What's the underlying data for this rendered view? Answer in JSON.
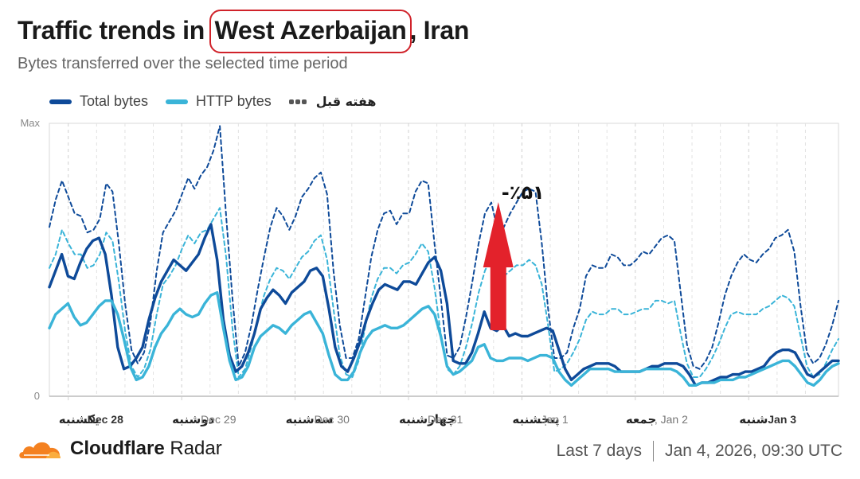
{
  "header": {
    "title_prefix": "Traffic trends in ",
    "title_region": "West Azerbaijan",
    "title_suffix": ", Iran",
    "subtitle": "Bytes transferred over the selected time period"
  },
  "legend": {
    "total": "Total bytes",
    "http": "HTTP bytes",
    "previous": "هفته قبل"
  },
  "footer": {
    "brand": "Cloudflare",
    "product": "Radar",
    "range": "Last 7 days",
    "timestamp": "Jan 4, 2026, 09:30 UTC"
  },
  "colors": {
    "total": "#0e4a99",
    "http": "#3ab4d8",
    "annotation": "#e3222b",
    "brand_orange": "#f48120"
  },
  "chart_data": {
    "type": "line",
    "y_axis": {
      "max_label": "Max",
      "min_label": "0",
      "range": [
        0,
        100
      ]
    },
    "x_ticks": [
      {
        "day": "یکشنبه",
        "date": "Dec 28"
      },
      {
        "day": "دوشنبه",
        "date": "Dec 29"
      },
      {
        "day": "سه‌شنبه",
        "date": "Dec 30"
      },
      {
        "day": "چهارشنبه",
        "date": "Dec 31"
      },
      {
        "day": "پنجشنبه",
        "date": "Jan 1"
      },
      {
        "day": "جمعه",
        "date": ", Jan 2"
      },
      {
        "day": "شنبه",
        "date": "Jan 3"
      }
    ],
    "x_range": [
      0,
      167
    ],
    "series": [
      {
        "name": "Total bytes",
        "color": "#0e4a99",
        "dashed": false,
        "values": [
          40,
          46,
          52,
          44,
          43,
          49,
          54,
          57,
          58,
          52,
          37,
          18,
          10,
          11,
          14,
          18,
          28,
          36,
          42,
          46,
          50,
          48,
          46,
          49,
          52,
          58,
          63,
          50,
          28,
          15,
          9,
          11,
          16,
          23,
          32,
          36,
          39,
          37,
          34,
          38,
          40,
          42,
          46,
          47,
          44,
          32,
          18,
          11,
          9,
          14,
          20,
          28,
          34,
          39,
          41,
          40,
          39,
          42,
          42,
          41,
          45,
          49,
          51,
          46,
          34,
          13,
          12,
          12,
          16,
          23,
          31,
          25,
          24,
          26,
          22,
          23,
          22,
          22,
          23,
          24,
          25,
          24,
          17,
          10,
          6,
          8,
          10,
          11,
          12,
          12,
          12,
          11,
          9,
          9,
          9,
          9,
          10,
          11,
          11,
          12,
          12,
          12,
          11,
          8,
          4,
          5,
          5,
          6,
          7,
          7,
          8,
          8,
          9,
          9,
          10,
          11,
          14,
          16,
          17,
          17,
          16,
          12,
          8,
          7,
          9,
          11,
          13,
          13
        ]
      },
      {
        "name": "HTTP bytes",
        "color": "#3ab4d8",
        "dashed": false,
        "values": [
          25,
          30,
          32,
          34,
          29,
          26,
          27,
          30,
          33,
          35,
          35,
          30,
          21,
          11,
          6,
          7,
          11,
          18,
          23,
          26,
          30,
          32,
          30,
          29,
          30,
          34,
          37,
          38,
          25,
          13,
          6,
          7,
          11,
          18,
          22,
          24,
          26,
          25,
          23,
          26,
          28,
          30,
          31,
          27,
          23,
          15,
          8,
          6,
          6,
          9,
          16,
          21,
          24,
          25,
          26,
          25,
          25,
          26,
          28,
          30,
          32,
          33,
          30,
          22,
          11,
          8,
          9,
          11,
          13,
          18,
          19,
          14,
          13,
          13,
          14,
          14,
          14,
          13,
          14,
          15,
          15,
          14,
          9,
          6,
          4,
          6,
          8,
          10,
          10,
          10,
          10,
          9,
          9,
          9,
          9,
          9,
          10,
          10,
          10,
          10,
          10,
          9,
          7,
          4,
          4,
          5,
          5,
          5,
          6,
          6,
          6,
          7,
          7,
          8,
          9,
          10,
          11,
          12,
          13,
          13,
          11,
          8,
          5,
          4,
          6,
          9,
          11,
          12
        ]
      },
      {
        "name": "Total bytes",
        "color": "#0e4a99",
        "dashed": true,
        "values": [
          62,
          72,
          79,
          73,
          67,
          66,
          60,
          61,
          65,
          78,
          75,
          56,
          34,
          17,
          12,
          16,
          27,
          46,
          60,
          64,
          68,
          74,
          80,
          76,
          81,
          84,
          90,
          99,
          66,
          36,
          11,
          16,
          26,
          39,
          51,
          62,
          69,
          66,
          61,
          66,
          73,
          76,
          80,
          82,
          74,
          46,
          26,
          14,
          14,
          21,
          36,
          51,
          61,
          67,
          68,
          63,
          67,
          67,
          75,
          79,
          78,
          56,
          36,
          15,
          14,
          18,
          29,
          42,
          56,
          67,
          71,
          61,
          62,
          67,
          71,
          75,
          76,
          75,
          56,
          32,
          14,
          14,
          16,
          25,
          32,
          44,
          48,
          47,
          47,
          52,
          51,
          48,
          48,
          50,
          53,
          52,
          55,
          58,
          59,
          57,
          38,
          19,
          11,
          10,
          13,
          18,
          27,
          37,
          44,
          49,
          52,
          50,
          49,
          52,
          54,
          58,
          59,
          61,
          53,
          33,
          16,
          12,
          14,
          19,
          26,
          35
        ]
      },
      {
        "name": "HTTP bytes",
        "color": "#3ab4d8",
        "dashed": true,
        "values": [
          47,
          52,
          61,
          56,
          52,
          52,
          47,
          48,
          52,
          60,
          57,
          42,
          24,
          11,
          7,
          10,
          17,
          30,
          41,
          44,
          48,
          54,
          59,
          56,
          60,
          61,
          65,
          69,
          51,
          25,
          7,
          10,
          18,
          28,
          37,
          43,
          47,
          46,
          43,
          47,
          51,
          53,
          57,
          59,
          50,
          32,
          15,
          8,
          7,
          13,
          25,
          36,
          43,
          47,
          47,
          45,
          48,
          49,
          52,
          56,
          53,
          40,
          23,
          10,
          8,
          11,
          18,
          27,
          38,
          46,
          51,
          44,
          44,
          46,
          48,
          48,
          50,
          48,
          41,
          26,
          9,
          10,
          12,
          16,
          21,
          28,
          31,
          30,
          30,
          32,
          32,
          30,
          30,
          31,
          32,
          32,
          35,
          35,
          34,
          35,
          23,
          12,
          7,
          7,
          10,
          14,
          19,
          25,
          30,
          31,
          30,
          30,
          30,
          32,
          33,
          35,
          37,
          36,
          33,
          22,
          11,
          7,
          8,
          12,
          17,
          21
        ]
      }
    ],
    "annotations": [
      {
        "text": "-٪۵۱",
        "x": 95,
        "color": "#e3222b"
      }
    ]
  }
}
